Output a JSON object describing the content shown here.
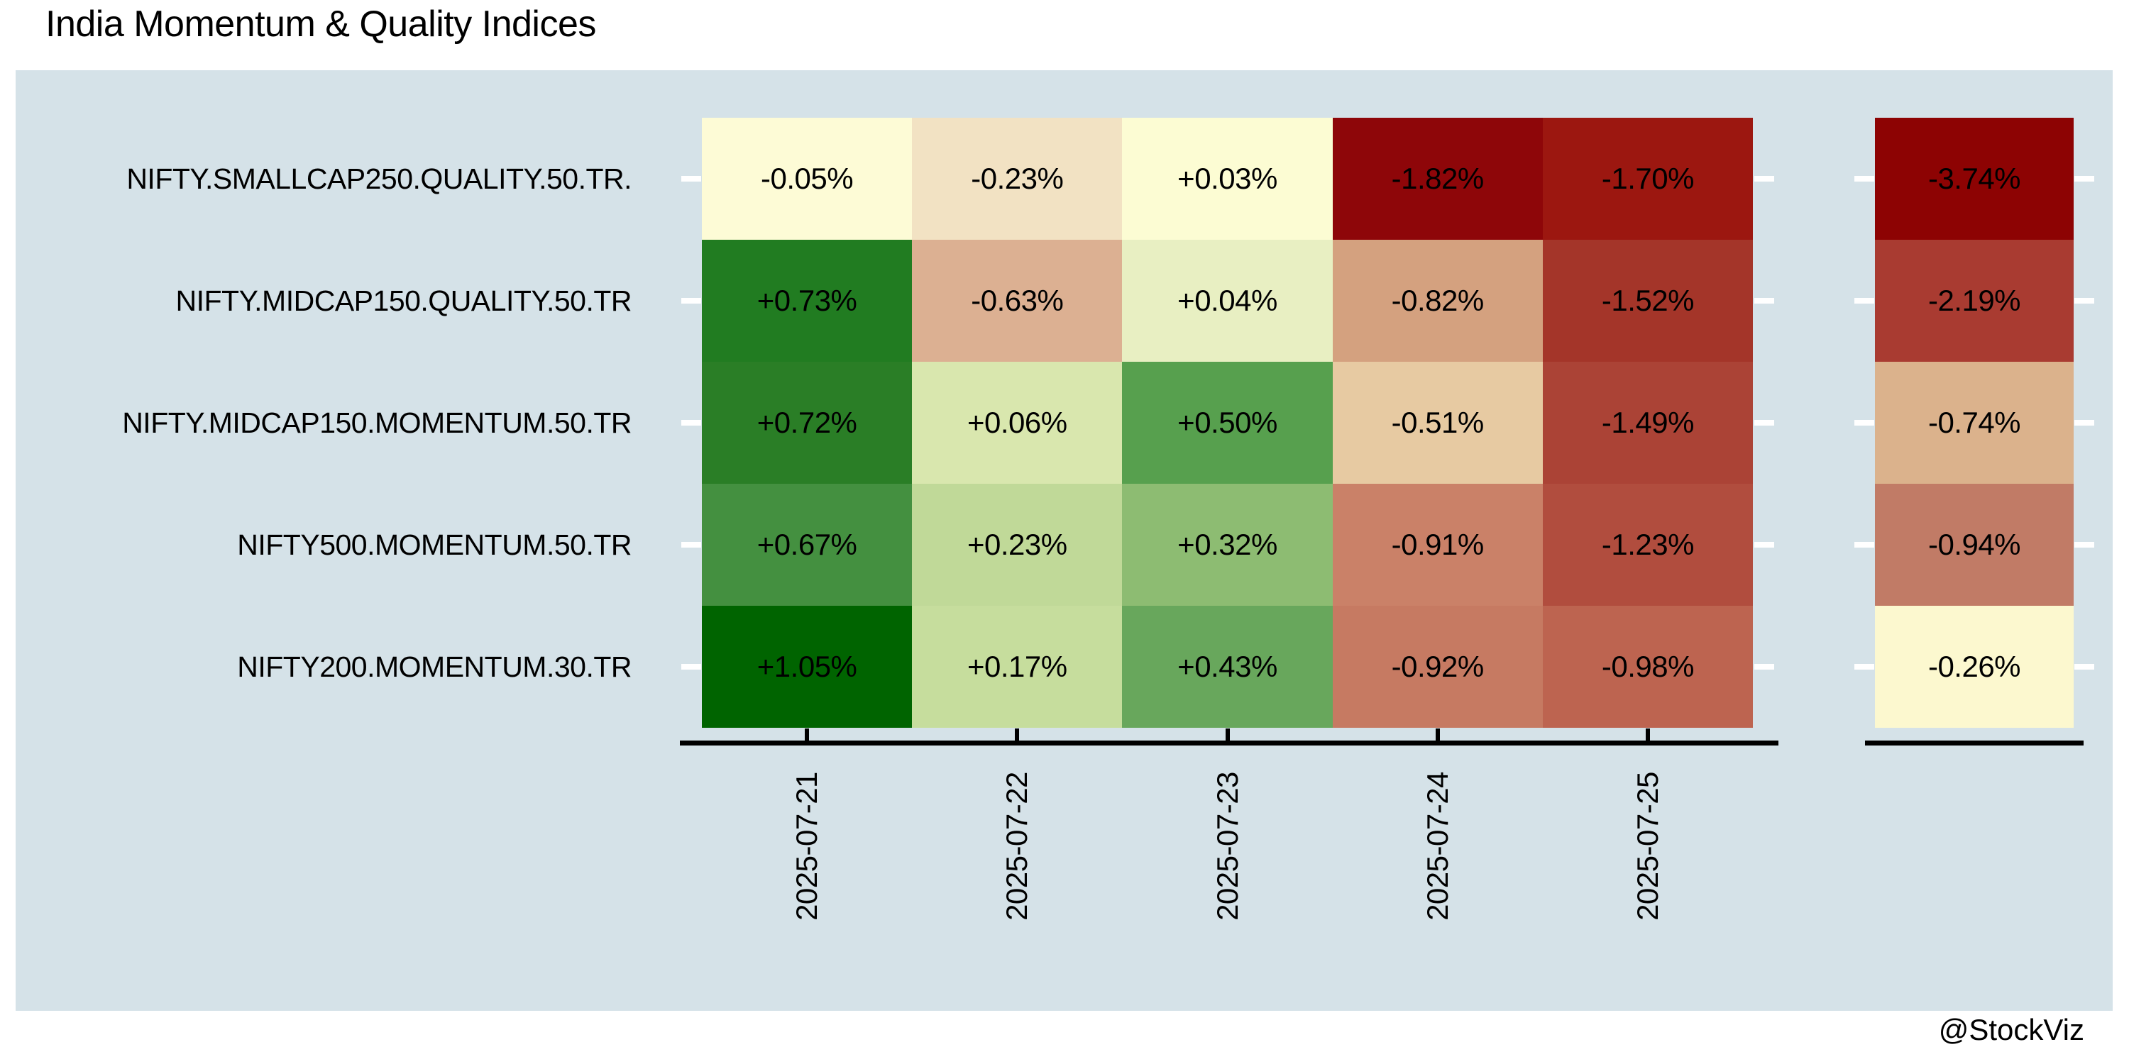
{
  "title": "India Momentum & Quality Indices",
  "attribution": "@StockViz",
  "colors": {
    "page_background": "#ffffff",
    "panel_background": "#d5e2e8",
    "axis": "#000000",
    "y_tick": "#ffffff",
    "text": "#000000"
  },
  "chart_data": {
    "type": "heatmap",
    "title": "India Momentum & Quality Indices",
    "rows": [
      "NIFTY.SMALLCAP250.QUALITY.50.TR.",
      "NIFTY.MIDCAP150.QUALITY.50.TR",
      "NIFTY.MIDCAP150.MOMENTUM.50.TR",
      "NIFTY500.MOMENTUM.50.TR",
      "NIFTY200.MOMENTUM.30.TR"
    ],
    "columns": [
      "2025-07-21",
      "2025-07-22",
      "2025-07-23",
      "2025-07-24",
      "2025-07-25"
    ],
    "daily_values": [
      [
        -0.05,
        -0.23,
        0.03,
        -1.82,
        -1.7
      ],
      [
        0.73,
        -0.63,
        0.04,
        -0.82,
        -1.52
      ],
      [
        0.72,
        0.06,
        0.5,
        -0.51,
        -1.49
      ],
      [
        0.67,
        0.23,
        0.32,
        -0.91,
        -1.23
      ],
      [
        1.05,
        0.17,
        0.43,
        -0.92,
        -0.98
      ]
    ],
    "daily_labels": [
      [
        "-0.05%",
        "-0.23%",
        "+0.03%",
        "-1.82%",
        "-1.70%"
      ],
      [
        "+0.73%",
        "-0.63%",
        "+0.04%",
        "-0.82%",
        "-1.52%"
      ],
      [
        "+0.72%",
        "+0.06%",
        "+0.50%",
        "-0.51%",
        "-1.49%"
      ],
      [
        "+0.67%",
        "+0.23%",
        "+0.32%",
        "-0.91%",
        "-1.23%"
      ],
      [
        "+1.05%",
        "+0.17%",
        "+0.43%",
        "-0.92%",
        "-0.98%"
      ]
    ],
    "daily_colors": [
      [
        "#fdfbd6",
        "#f2e2c3",
        "#fcfcd3",
        "#8e0609",
        "#9c1710"
      ],
      [
        "#217c21",
        "#dcb092",
        "#e8efc2",
        "#d4a17f",
        "#a43529"
      ],
      [
        "#2a7e26",
        "#d9e7ae",
        "#57a04e",
        "#e7caa2",
        "#ab4336"
      ],
      [
        "#449040",
        "#c0d998",
        "#8dbc72",
        "#ca8168",
        "#b14d3e"
      ],
      [
        "#006400",
        "#c6dd9d",
        "#68a75c",
        "#c67a62",
        "#bd6450"
      ]
    ],
    "cumulative_values": [
      -3.74,
      -2.19,
      -0.74,
      -0.94,
      -0.26
    ],
    "cumulative_labels": [
      "-3.74%",
      "-2.19%",
      "-0.74%",
      "-0.94%",
      "-0.26%"
    ],
    "cumulative_colors": [
      "#8d0303",
      "#a93b31",
      "#dbb28c",
      "#c17b66",
      "#fcf8cf"
    ],
    "legend": "none",
    "grid": "off"
  }
}
